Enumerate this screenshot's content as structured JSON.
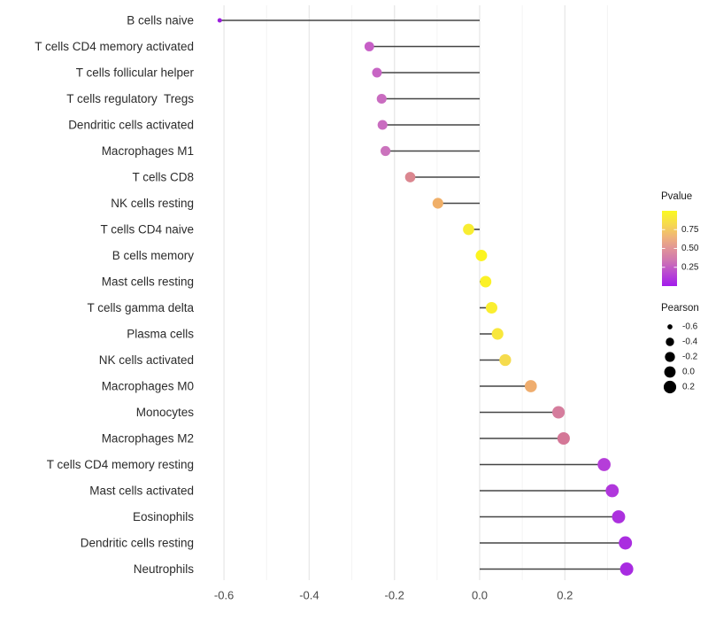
{
  "chart_data": {
    "type": "scatter",
    "variant": "lollipop",
    "title": "",
    "xlabel": "",
    "ylabel": "",
    "grid": "vertical-major-and-minor",
    "legend_position": "right",
    "xlim": [
      -0.665,
      0.41
    ],
    "x_major_ticks": [
      -0.6,
      -0.4,
      -0.2,
      0.0,
      0.2
    ],
    "x_tick_labels": [
      "-0.6",
      "-0.4",
      "-0.2",
      "0.0",
      "0.2"
    ],
    "x_minor_ticks": [
      -0.5,
      -0.3,
      -0.1,
      0.1,
      0.3
    ],
    "stem_color": "#454545",
    "points": [
      {
        "label": "B cells naive",
        "pearson": -0.61,
        "color": "#9C1FDE"
      },
      {
        "label": "T cells CD4 memory activated",
        "pearson": -0.259,
        "color": "#C75FC7"
      },
      {
        "label": "T cells follicular helper",
        "pearson": -0.241,
        "color": "#C765C4"
      },
      {
        "label": "T cells regulatory  Tregs",
        "pearson": -0.23,
        "color": "#C96CC0"
      },
      {
        "label": "Dendritic cells activated",
        "pearson": -0.228,
        "color": "#C96DC0"
      },
      {
        "label": "Macrophages M1",
        "pearson": -0.221,
        "color": "#CB73BD"
      },
      {
        "label": "T cells CD8",
        "pearson": -0.163,
        "color": "#DB8790"
      },
      {
        "label": "NK cells resting",
        "pearson": -0.098,
        "color": "#F0AF68"
      },
      {
        "label": "T cells CD4 naive",
        "pearson": -0.026,
        "color": "#F8ED32"
      },
      {
        "label": "B cells memory",
        "pearson": 0.004,
        "color": "#FCF41F"
      },
      {
        "label": "Mast cells resting",
        "pearson": 0.014,
        "color": "#FBF126"
      },
      {
        "label": "T cells gamma delta",
        "pearson": 0.028,
        "color": "#FAEE30"
      },
      {
        "label": "Plasma cells",
        "pearson": 0.042,
        "color": "#F8E73C"
      },
      {
        "label": "NK cells activated",
        "pearson": 0.06,
        "color": "#F5DB4D"
      },
      {
        "label": "Macrophages M0",
        "pearson": 0.12,
        "color": "#EFAD6E"
      },
      {
        "label": "Monocytes",
        "pearson": 0.185,
        "color": "#D57D9D"
      },
      {
        "label": "Macrophages M2",
        "pearson": 0.197,
        "color": "#D47797"
      },
      {
        "label": "T cells CD4 memory resting",
        "pearson": 0.292,
        "color": "#B53DD9"
      },
      {
        "label": "Mast cells activated",
        "pearson": 0.311,
        "color": "#B037DC"
      },
      {
        "label": "Eosinophils",
        "pearson": 0.326,
        "color": "#AC31DE"
      },
      {
        "label": "Dendritic cells resting",
        "pearson": 0.342,
        "color": "#AA2DE0"
      },
      {
        "label": "Neutrophils",
        "pearson": 0.345,
        "color": "#A82BE1"
      }
    ],
    "legend_pvalue": {
      "title": "Pvalue",
      "range": [
        0,
        1
      ],
      "tick_values": [
        0.75,
        0.5,
        0.25
      ],
      "tick_labels": [
        "0.75",
        "0.50",
        "0.25"
      ],
      "gradient_top_to_bottom": [
        {
          "pos": 0.0,
          "color": "#FAF921"
        },
        {
          "pos": 0.18,
          "color": "#F6D94F"
        },
        {
          "pos": 0.35,
          "color": "#EFB37A"
        },
        {
          "pos": 0.5,
          "color": "#E19498"
        },
        {
          "pos": 0.65,
          "color": "#D078AF"
        },
        {
          "pos": 0.82,
          "color": "#BA4BD0"
        },
        {
          "pos": 1.0,
          "color": "#A21BEC"
        }
      ]
    },
    "legend_pearson": {
      "title": "Pearson",
      "dot_color": "#000000",
      "entries": [
        {
          "value": -0.6,
          "label": "-0.6"
        },
        {
          "value": -0.4,
          "label": "-0.4"
        },
        {
          "value": -0.2,
          "label": "-0.2"
        },
        {
          "value": 0.0,
          "label": "0.0"
        },
        {
          "value": 0.2,
          "label": "0.2"
        }
      ]
    }
  }
}
